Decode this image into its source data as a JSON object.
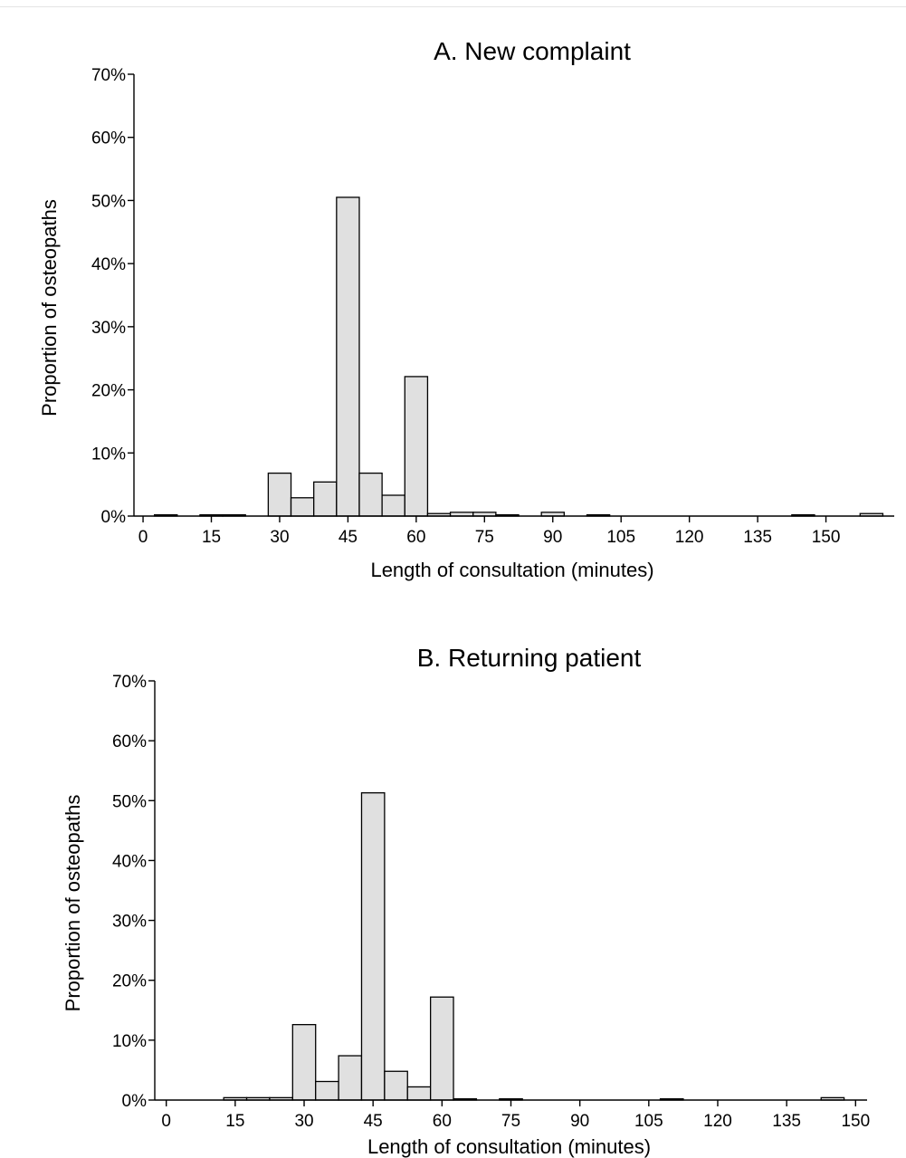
{
  "chart_data": [
    {
      "type": "bar",
      "title": "A. New complaint",
      "xlabel": "Length of consultation (minutes)",
      "ylabel": "Proportion of osteopaths",
      "bin_width": 5,
      "xlim": [
        -2,
        165
      ],
      "ylim": [
        0,
        0.7
      ],
      "xticks": [
        "0",
        "15",
        "30",
        "45",
        "60",
        "75",
        "90",
        "105",
        "120",
        "135",
        "150"
      ],
      "yticks": [
        "0%",
        "10%",
        "20%",
        "30%",
        "40%",
        "50%",
        "60%",
        "70%"
      ],
      "bins": [
        {
          "start": 2.5,
          "value": 0.002
        },
        {
          "start": 12.5,
          "value": 0.002
        },
        {
          "start": 17.5,
          "value": 0.002
        },
        {
          "start": 27.5,
          "value": 0.068
        },
        {
          "start": 32.5,
          "value": 0.029
        },
        {
          "start": 37.5,
          "value": 0.054
        },
        {
          "start": 42.5,
          "value": 0.505
        },
        {
          "start": 47.5,
          "value": 0.068
        },
        {
          "start": 52.5,
          "value": 0.033
        },
        {
          "start": 57.5,
          "value": 0.221
        },
        {
          "start": 62.5,
          "value": 0.004
        },
        {
          "start": 67.5,
          "value": 0.006
        },
        {
          "start": 72.5,
          "value": 0.006
        },
        {
          "start": 77.5,
          "value": 0.002
        },
        {
          "start": 87.5,
          "value": 0.006
        },
        {
          "start": 97.5,
          "value": 0.002
        },
        {
          "start": 142.5,
          "value": 0.002
        },
        {
          "start": 157.5,
          "value": 0.004
        }
      ],
      "grid": false
    },
    {
      "type": "bar",
      "title": "B. Returning patient",
      "xlabel": "Length of consultation (minutes)",
      "ylabel": "Proportion of osteopaths",
      "bin_width": 5,
      "xlim": [
        -2.5,
        152.5
      ],
      "ylim": [
        0,
        0.7
      ],
      "xticks": [
        "0",
        "15",
        "30",
        "45",
        "60",
        "75",
        "90",
        "105",
        "120",
        "135",
        "150"
      ],
      "yticks": [
        "0%",
        "10%",
        "20%",
        "30%",
        "40%",
        "50%",
        "60%",
        "70%"
      ],
      "bins": [
        {
          "start": 12.5,
          "value": 0.004
        },
        {
          "start": 17.5,
          "value": 0.004
        },
        {
          "start": 22.5,
          "value": 0.004
        },
        {
          "start": 27.5,
          "value": 0.126
        },
        {
          "start": 32.5,
          "value": 0.031
        },
        {
          "start": 37.5,
          "value": 0.074
        },
        {
          "start": 42.5,
          "value": 0.513
        },
        {
          "start": 47.5,
          "value": 0.048
        },
        {
          "start": 52.5,
          "value": 0.022
        },
        {
          "start": 57.5,
          "value": 0.172
        },
        {
          "start": 62.5,
          "value": 0.002
        },
        {
          "start": 72.5,
          "value": 0.002
        },
        {
          "start": 107.5,
          "value": 0.002
        },
        {
          "start": 142.5,
          "value": 0.004
        }
      ],
      "grid": false
    }
  ]
}
